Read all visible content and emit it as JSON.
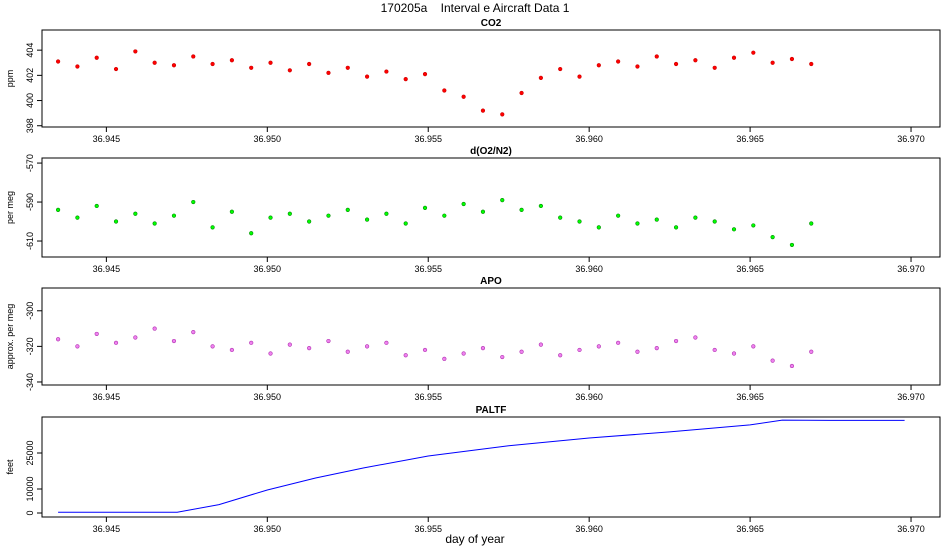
{
  "title": "170205a    Interval e Aircraft Data 1",
  "chart_data": [
    {
      "type": "scatter",
      "title": "CO2",
      "ylabel": "ppm",
      "color": "#ff0000",
      "stroke": "#cc0000",
      "x": [
        36.9435,
        36.9441,
        36.9447,
        36.9453,
        36.9459,
        36.9465,
        36.9471,
        36.9477,
        36.9483,
        36.9489,
        36.9495,
        36.9501,
        36.9507,
        36.9513,
        36.9519,
        36.9525,
        36.9531,
        36.9537,
        36.9543,
        36.9549,
        36.9555,
        36.9561,
        36.9567,
        36.9573,
        36.9579,
        36.9585,
        36.9591,
        36.9597,
        36.9603,
        36.9609,
        36.9615,
        36.9621,
        36.9627,
        36.9633,
        36.9639,
        36.9645,
        36.9651,
        36.9657,
        36.9663,
        36.9669
      ],
      "values": [
        403.1,
        402.7,
        403.4,
        402.5,
        403.9,
        403.0,
        402.8,
        403.5,
        402.9,
        403.2,
        402.6,
        403.0,
        402.4,
        402.9,
        402.2,
        402.6,
        401.9,
        402.3,
        401.7,
        402.1,
        400.8,
        400.3,
        399.2,
        398.9,
        400.6,
        401.8,
        402.5,
        401.9,
        402.8,
        403.1,
        402.7,
        403.5,
        402.9,
        403.2,
        402.6,
        403.4,
        403.8,
        403.0,
        403.3,
        402.9
      ],
      "xlim": [
        36.943,
        36.9709
      ],
      "ylim": [
        397.9,
        405.6
      ],
      "xticks": [
        36.945,
        {
          "value": 36.95,
          "label": "36.950"
        },
        36.955,
        {
          "value": 36.96,
          "label": "36.960"
        },
        36.965,
        {
          "value": 36.97,
          "label": "36.970"
        }
      ],
      "yticks": [
        398,
        400,
        402,
        404
      ]
    },
    {
      "type": "scatter",
      "title": "d(O2/N2)",
      "ylabel": "per meg",
      "color": "#00ff00",
      "stroke": "#008800",
      "x": [
        36.9435,
        36.9441,
        36.9447,
        36.9453,
        36.9459,
        36.9465,
        36.9471,
        36.9477,
        36.9483,
        36.9489,
        36.9495,
        36.9501,
        36.9507,
        36.9513,
        36.9519,
        36.9525,
        36.9531,
        36.9537,
        36.9543,
        36.9549,
        36.9555,
        36.9561,
        36.9567,
        36.9573,
        36.9579,
        36.9585,
        36.9591,
        36.9597,
        36.9603,
        36.9609,
        36.9615,
        36.9621,
        36.9627,
        36.9633,
        36.9639,
        36.9645,
        36.9651,
        36.9657,
        36.9663,
        36.9669
      ],
      "values": [
        -594,
        -598,
        -592,
        -600,
        -596,
        -601,
        -597,
        -590,
        -603,
        -595,
        -606,
        -598,
        -596,
        -600,
        -597,
        -594,
        -599,
        -596,
        -601,
        -593,
        -597,
        -591,
        -595,
        -589,
        -594,
        -592,
        -598,
        -600,
        -603,
        -597,
        -601,
        -599,
        -603,
        -598,
        -600,
        -604,
        -602,
        -608,
        -612,
        -601
      ],
      "xlim": [
        36.943,
        36.9709
      ],
      "ylim": [
        -618.2,
        -567.4
      ],
      "xticks": [
        36.945,
        {
          "value": 36.95,
          "label": "36.950"
        },
        36.955,
        {
          "value": 36.96,
          "label": "36.960"
        },
        36.965,
        {
          "value": 36.97,
          "label": "36.970"
        }
      ],
      "yticks": [
        -570,
        -590,
        -610
      ]
    },
    {
      "type": "scatter",
      "title": "APO",
      "ylabel": "approx. per meg",
      "color": "#ee82ee",
      "stroke": "#b030b0",
      "x": [
        36.9435,
        36.9441,
        36.9447,
        36.9453,
        36.9459,
        36.9465,
        36.9471,
        36.9477,
        36.9483,
        36.9489,
        36.9495,
        36.9501,
        36.9507,
        36.9513,
        36.9519,
        36.9525,
        36.9531,
        36.9537,
        36.9543,
        36.9549,
        36.9555,
        36.9561,
        36.9567,
        36.9573,
        36.9579,
        36.9585,
        36.9591,
        36.9597,
        36.9603,
        36.9609,
        36.9615,
        36.9621,
        36.9627,
        36.9633,
        36.9639,
        36.9645,
        36.9651,
        36.9657,
        36.9663,
        36.9669
      ],
      "values": [
        -316,
        -320,
        -313,
        -318,
        -315,
        -310,
        -317,
        -312,
        -320,
        -322,
        -318,
        -324,
        -319,
        -321,
        -317,
        -323,
        -320,
        -318,
        -325,
        -322,
        -327,
        -324,
        -321,
        -326,
        -323,
        -319,
        -325,
        -322,
        -320,
        -318,
        -323,
        -321,
        -317,
        -315,
        -322,
        -324,
        -320,
        -328,
        -331,
        -323
      ],
      "xlim": [
        36.943,
        36.9709
      ],
      "ylim": [
        -341.7,
        -287.2
      ],
      "xticks": [
        36.945,
        {
          "value": 36.95,
          "label": "36.950"
        },
        36.955,
        {
          "value": 36.96,
          "label": "36.960"
        },
        36.965,
        {
          "value": 36.97,
          "label": "36.970"
        }
      ],
      "yticks": [
        -300,
        -320,
        -340
      ]
    },
    {
      "type": "line",
      "title": "PALTF",
      "ylabel": "feet",
      "xlabel": "day of year",
      "color": "#0000ff",
      "x": [
        36.9435,
        36.9472,
        36.9485,
        36.95,
        36.9515,
        36.953,
        36.955,
        36.9575,
        36.96,
        36.9625,
        36.965,
        36.966,
        36.9675,
        36.9698
      ],
      "values": [
        300,
        300,
        3500,
        9600,
        14600,
        18800,
        23750,
        28000,
        31250,
        33800,
        36700,
        38700,
        38600,
        38600
      ],
      "xlim": [
        36.943,
        36.9709
      ],
      "ylim": [
        -1667,
        40000
      ],
      "xticks": [
        36.945,
        {
          "value": 36.95,
          "label": "36.950"
        },
        36.955,
        {
          "value": 36.96,
          "label": "36.960"
        },
        36.965,
        {
          "value": 36.97,
          "label": "36.970"
        }
      ],
      "yticks": [
        0,
        10000,
        25000
      ]
    }
  ]
}
